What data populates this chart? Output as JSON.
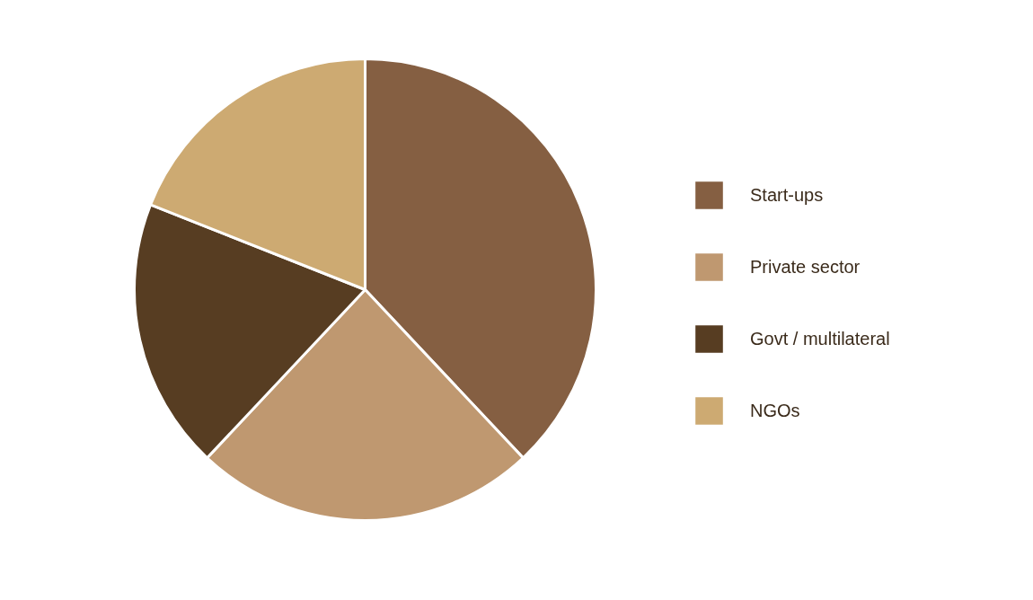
{
  "chart_data": {
    "type": "pie",
    "categories": [
      "Start-ups",
      "Private sector",
      "Govt / multilateral",
      "NGOs"
    ],
    "values": [
      38,
      24,
      19,
      19
    ],
    "colors": [
      "#855f42",
      "#bf9870",
      "#573d22",
      "#cdaa72"
    ],
    "legend": "right"
  }
}
